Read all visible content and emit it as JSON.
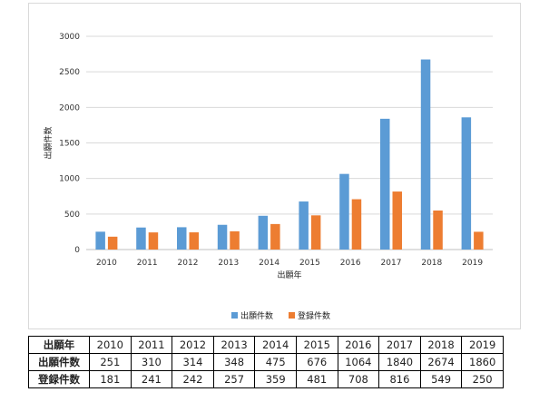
{
  "colors": {
    "series_1": "#5b9bd5",
    "series_2": "#ed7d31",
    "grid": "#d9d9d9",
    "axis": "#bfbfbf"
  },
  "chart_data": {
    "type": "bar",
    "categories": [
      "2010",
      "2011",
      "2012",
      "2013",
      "2014",
      "2015",
      "2016",
      "2017",
      "2018",
      "2019"
    ],
    "series": [
      {
        "name": "出願件数",
        "values": [
          251,
          310,
          314,
          348,
          475,
          676,
          1064,
          1840,
          2674,
          1860
        ]
      },
      {
        "name": "登録件数",
        "values": [
          181,
          241,
          242,
          257,
          359,
          481,
          708,
          816,
          549,
          250
        ]
      }
    ],
    "title": "",
    "xlabel": "出願年",
    "ylabel": "出願件数",
    "ylim": [
      0,
      3000
    ],
    "yticks": [
      0,
      500,
      1000,
      1500,
      2000,
      2500,
      3000
    ],
    "grid": true,
    "legend_position": "bottom"
  },
  "table": {
    "header_label": "出願年",
    "columns": [
      "2010",
      "2011",
      "2012",
      "2013",
      "2014",
      "2015",
      "2016",
      "2017",
      "2018",
      "2019"
    ],
    "rows": [
      {
        "label": "出願件数",
        "values": [
          "251",
          "310",
          "314",
          "348",
          "475",
          "676",
          "1064",
          "1840",
          "2674",
          "1860"
        ]
      },
      {
        "label": "登録件数",
        "values": [
          "181",
          "241",
          "242",
          "257",
          "359",
          "481",
          "708",
          "816",
          "549",
          "250"
        ]
      }
    ]
  }
}
